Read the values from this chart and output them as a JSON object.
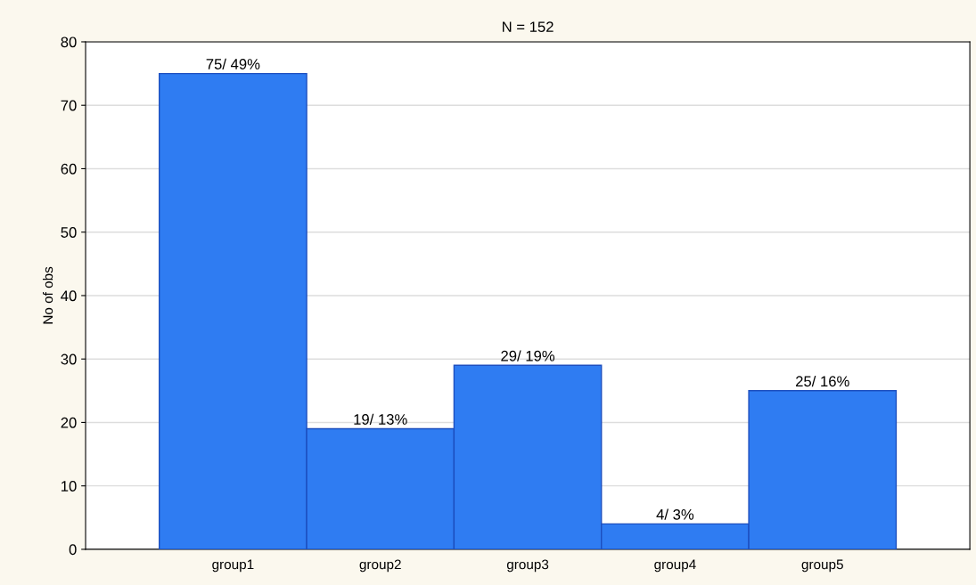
{
  "chart_data": {
    "type": "bar",
    "title": "N = 152",
    "ylabel": "No of obs",
    "categories": [
      "group1",
      "group2",
      "group3",
      "group4",
      "group5"
    ],
    "values": [
      75,
      19,
      29,
      4,
      25
    ],
    "value_labels": [
      "75/ 49%",
      "19/ 13%",
      "29/ 19%",
      "4/ 3%",
      "25/ 16%"
    ],
    "color": "#2f7cf2",
    "ylim": [
      0,
      80
    ],
    "yticks": [
      0,
      10,
      20,
      30,
      40,
      50,
      60,
      70,
      80
    ],
    "grid": "y"
  }
}
